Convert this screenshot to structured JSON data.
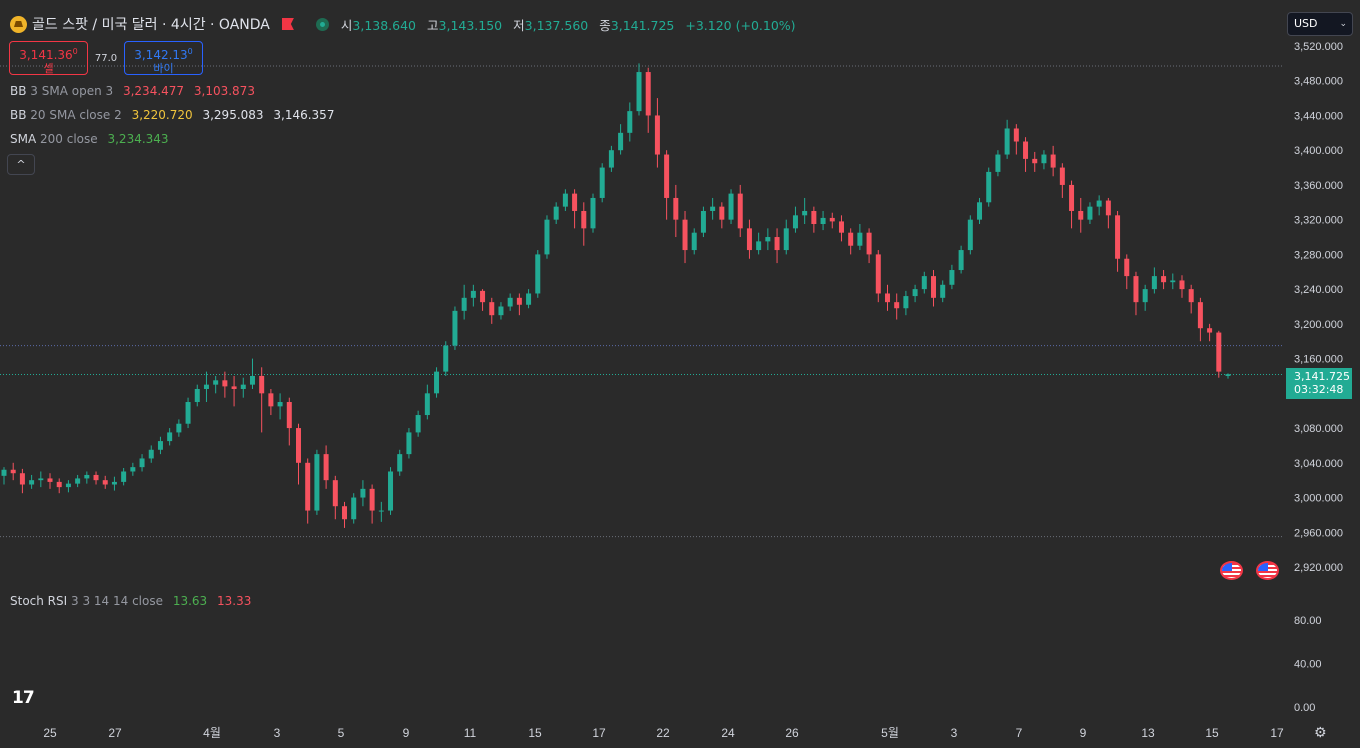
{
  "header": {
    "title": "골드 스팟 / 미국 달러 · 4시간 · OANDA",
    "ohlc": [
      {
        "key": "시",
        "value": "3,138.640"
      },
      {
        "key": "고",
        "value": "3,143.150"
      },
      {
        "key": "저",
        "value": "3,137.560"
      },
      {
        "key": "종",
        "value": "3,141.725"
      }
    ],
    "change": "+3.120 (+0.10%)"
  },
  "trade": {
    "sell_price": "3,141.36",
    "sell_sup": "0",
    "sell_label": "셀",
    "spread": "77.0",
    "buy_price": "3,142.13",
    "buy_sup": "0",
    "buy_label": "바이"
  },
  "indicators": {
    "bb1": {
      "name": "BB",
      "params": "3 SMA open 3",
      "values": [
        "3,234.477",
        "3,103.873"
      ]
    },
    "bb2": {
      "name": "BB",
      "params": "20 SMA close 2",
      "values": [
        "3,220.720",
        "3,295.083",
        "3,146.357"
      ]
    },
    "sma": {
      "name": "SMA",
      "params": "200 close",
      "values": [
        "3,234.343"
      ]
    },
    "collapse_label": "^",
    "stoch": {
      "name": "Stoch RSI",
      "params": "3 3 14 14 close",
      "values": [
        "13.63",
        "13.33"
      ]
    }
  },
  "currency": {
    "label": "USD",
    "chevron": "⌄"
  },
  "last_price": {
    "value": "3,141.725",
    "countdown": "03:32:48"
  },
  "logo_text": "17",
  "gear_glyph": "⚙",
  "colors": {
    "background": "#2a2a2a",
    "up": "#22ab94",
    "down": "#f7525f",
    "bb_upper": "#f7525f",
    "bb_basis": "#f0c43c",
    "sma": "#4caf50",
    "stoch_k": "#4caf50",
    "stoch_d": "#f7525f"
  },
  "chart_data": {
    "type": "candlestick",
    "title": "",
    "xlabel": "",
    "ylabel": "",
    "ylim": [
      2900,
      3540
    ],
    "y_ticks": [
      "3,520.000",
      "3,480.000",
      "3,440.000",
      "3,400.000",
      "3,360.000",
      "3,320.000",
      "3,280.000",
      "3,240.000",
      "3,200.000",
      "3,160.000",
      "3,080.000",
      "3,040.000",
      "3,000.000",
      "2,960.000",
      "2,920.000"
    ],
    "x_ticks": [
      "25",
      "27",
      "4월",
      "3",
      "5",
      "9",
      "11",
      "15",
      "17",
      "22",
      "24",
      "26",
      "5월",
      "3",
      "7",
      "9",
      "13",
      "15",
      "17"
    ],
    "horizontal_lines": [
      3497,
      3175,
      3141.725,
      2955
    ],
    "stoch_ticks": [
      "80.00",
      "40.00",
      "0.00"
    ],
    "stoch_ylim": [
      0,
      100
    ],
    "candles": [
      [
        3025,
        3032,
        3015,
        3035
      ],
      [
        3032,
        3028,
        3020,
        3040
      ],
      [
        3028,
        3015,
        3005,
        3033
      ],
      [
        3015,
        3020,
        3010,
        3026
      ],
      [
        3020,
        3022,
        3012,
        3030
      ],
      [
        3022,
        3018,
        3010,
        3028
      ],
      [
        3018,
        3012,
        3005,
        3022
      ],
      [
        3012,
        3016,
        3006,
        3020
      ],
      [
        3016,
        3022,
        3012,
        3026
      ],
      [
        3022,
        3026,
        3016,
        3030
      ],
      [
        3026,
        3020,
        3015,
        3030
      ],
      [
        3020,
        3015,
        3010,
        3025
      ],
      [
        3015,
        3018,
        3008,
        3024
      ],
      [
        3018,
        3030,
        3014,
        3034
      ],
      [
        3030,
        3035,
        3025,
        3040
      ],
      [
        3035,
        3045,
        3030,
        3050
      ],
      [
        3045,
        3055,
        3040,
        3060
      ],
      [
        3055,
        3065,
        3050,
        3070
      ],
      [
        3065,
        3075,
        3060,
        3080
      ],
      [
        3075,
        3085,
        3070,
        3090
      ],
      [
        3085,
        3110,
        3080,
        3115
      ],
      [
        3110,
        3125,
        3105,
        3130
      ],
      [
        3125,
        3130,
        3110,
        3145
      ],
      [
        3130,
        3135,
        3120,
        3140
      ],
      [
        3135,
        3128,
        3115,
        3145
      ],
      [
        3128,
        3125,
        3105,
        3140
      ],
      [
        3125,
        3130,
        3115,
        3138
      ],
      [
        3130,
        3140,
        3125,
        3160
      ],
      [
        3140,
        3120,
        3075,
        3150
      ],
      [
        3120,
        3105,
        3095,
        3125
      ],
      [
        3105,
        3110,
        3090,
        3120
      ],
      [
        3110,
        3080,
        3060,
        3115
      ],
      [
        3080,
        3040,
        3015,
        3085
      ],
      [
        3040,
        2985,
        2970,
        3045
      ],
      [
        2985,
        3050,
        2980,
        3055
      ],
      [
        3050,
        3020,
        3010,
        3060
      ],
      [
        3020,
        2990,
        2975,
        3025
      ],
      [
        2990,
        2975,
        2965,
        2995
      ],
      [
        2975,
        3000,
        2970,
        3005
      ],
      [
        3000,
        3010,
        2990,
        3020
      ],
      [
        3010,
        2985,
        2970,
        3015
      ],
      [
        2985,
        2985,
        2972,
        2995
      ],
      [
        2985,
        3030,
        2980,
        3035
      ],
      [
        3030,
        3050,
        3025,
        3055
      ],
      [
        3050,
        3075,
        3045,
        3080
      ],
      [
        3075,
        3095,
        3070,
        3100
      ],
      [
        3095,
        3120,
        3090,
        3130
      ],
      [
        3120,
        3145,
        3115,
        3150
      ],
      [
        3145,
        3175,
        3140,
        3180
      ],
      [
        3175,
        3215,
        3170,
        3220
      ],
      [
        3215,
        3230,
        3205,
        3245
      ],
      [
        3230,
        3238,
        3220,
        3245
      ],
      [
        3238,
        3225,
        3215,
        3240
      ],
      [
        3225,
        3210,
        3200,
        3230
      ],
      [
        3210,
        3220,
        3205,
        3225
      ],
      [
        3220,
        3230,
        3215,
        3235
      ],
      [
        3230,
        3222,
        3210,
        3235
      ],
      [
        3222,
        3235,
        3218,
        3240
      ],
      [
        3235,
        3280,
        3230,
        3285
      ],
      [
        3280,
        3320,
        3275,
        3325
      ],
      [
        3320,
        3335,
        3315,
        3340
      ],
      [
        3335,
        3350,
        3330,
        3355
      ],
      [
        3350,
        3330,
        3310,
        3355
      ],
      [
        3330,
        3310,
        3290,
        3340
      ],
      [
        3310,
        3345,
        3305,
        3350
      ],
      [
        3345,
        3380,
        3340,
        3385
      ],
      [
        3380,
        3400,
        3375,
        3405
      ],
      [
        3400,
        3420,
        3395,
        3430
      ],
      [
        3420,
        3445,
        3410,
        3455
      ],
      [
        3445,
        3490,
        3440,
        3500
      ],
      [
        3490,
        3440,
        3420,
        3495
      ],
      [
        3440,
        3395,
        3380,
        3460
      ],
      [
        3395,
        3345,
        3320,
        3400
      ],
      [
        3345,
        3320,
        3300,
        3360
      ],
      [
        3320,
        3285,
        3270,
        3330
      ],
      [
        3285,
        3305,
        3280,
        3310
      ],
      [
        3305,
        3330,
        3300,
        3335
      ],
      [
        3330,
        3335,
        3320,
        3345
      ],
      [
        3335,
        3320,
        3310,
        3340
      ],
      [
        3320,
        3350,
        3315,
        3355
      ],
      [
        3350,
        3310,
        3300,
        3360
      ],
      [
        3310,
        3285,
        3275,
        3320
      ],
      [
        3285,
        3295,
        3280,
        3305
      ],
      [
        3295,
        3300,
        3285,
        3310
      ],
      [
        3300,
        3285,
        3270,
        3310
      ],
      [
        3285,
        3310,
        3280,
        3320
      ],
      [
        3310,
        3325,
        3305,
        3335
      ],
      [
        3325,
        3330,
        3315,
        3345
      ],
      [
        3330,
        3315,
        3305,
        3335
      ],
      [
        3315,
        3322,
        3308,
        3330
      ],
      [
        3322,
        3318,
        3310,
        3328
      ],
      [
        3318,
        3305,
        3295,
        3325
      ],
      [
        3305,
        3290,
        3280,
        3310
      ],
      [
        3290,
        3305,
        3285,
        3315
      ],
      [
        3305,
        3280,
        3270,
        3310
      ],
      [
        3280,
        3235,
        3225,
        3285
      ],
      [
        3235,
        3225,
        3215,
        3245
      ],
      [
        3225,
        3218,
        3205,
        3235
      ],
      [
        3218,
        3232,
        3210,
        3238
      ],
      [
        3232,
        3240,
        3225,
        3245
      ],
      [
        3240,
        3255,
        3235,
        3260
      ],
      [
        3255,
        3230,
        3220,
        3262
      ],
      [
        3230,
        3245,
        3225,
        3250
      ],
      [
        3245,
        3262,
        3240,
        3268
      ],
      [
        3262,
        3285,
        3258,
        3290
      ],
      [
        3285,
        3320,
        3280,
        3325
      ],
      [
        3320,
        3340,
        3315,
        3345
      ],
      [
        3340,
        3375,
        3335,
        3380
      ],
      [
        3375,
        3395,
        3370,
        3400
      ],
      [
        3395,
        3425,
        3390,
        3435
      ],
      [
        3425,
        3410,
        3395,
        3430
      ],
      [
        3410,
        3390,
        3375,
        3415
      ],
      [
        3390,
        3385,
        3375,
        3398
      ],
      [
        3385,
        3395,
        3378,
        3400
      ],
      [
        3395,
        3380,
        3370,
        3405
      ],
      [
        3380,
        3360,
        3345,
        3385
      ],
      [
        3360,
        3330,
        3310,
        3365
      ],
      [
        3330,
        3320,
        3305,
        3345
      ],
      [
        3320,
        3335,
        3315,
        3340
      ],
      [
        3335,
        3342,
        3325,
        3348
      ],
      [
        3342,
        3325,
        3310,
        3345
      ],
      [
        3325,
        3275,
        3260,
        3330
      ],
      [
        3275,
        3255,
        3240,
        3280
      ],
      [
        3255,
        3225,
        3210,
        3260
      ],
      [
        3225,
        3240,
        3215,
        3245
      ],
      [
        3240,
        3255,
        3235,
        3265
      ],
      [
        3255,
        3248,
        3240,
        3262
      ],
      [
        3248,
        3250,
        3240,
        3258
      ],
      [
        3250,
        3240,
        3230,
        3256
      ],
      [
        3240,
        3225,
        3212,
        3245
      ],
      [
        3225,
        3195,
        3180,
        3230
      ],
      [
        3195,
        3190,
        3180,
        3200
      ],
      [
        3190,
        3145,
        3138,
        3192
      ],
      [
        3140,
        3142,
        3137,
        3143
      ]
    ]
  }
}
